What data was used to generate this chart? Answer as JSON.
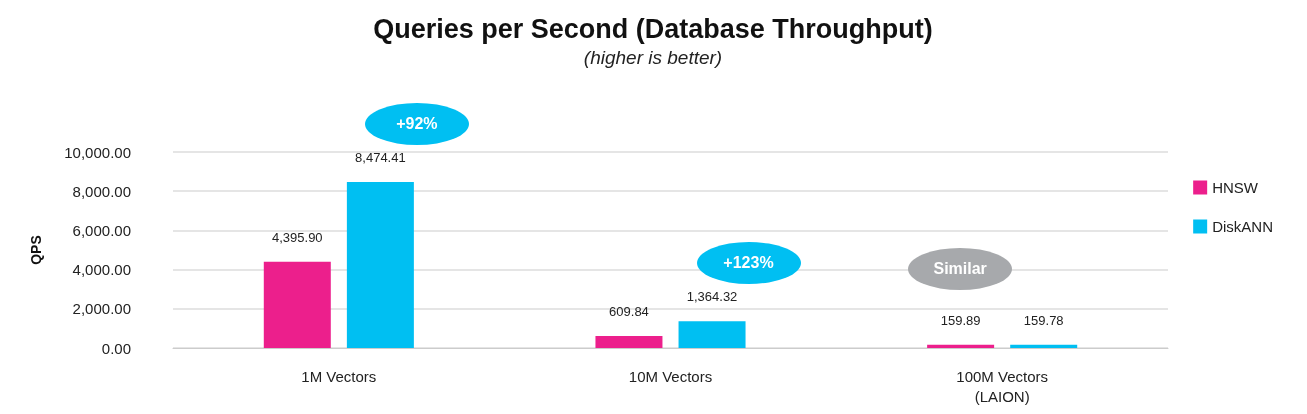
{
  "chart_data": {
    "type": "bar",
    "title": "Queries per Second (Database Throughput)",
    "subtitle": "(higher is better)",
    "ylabel": "QPS",
    "categories": [
      "1M Vectors",
      "10M Vectors",
      "100M Vectors\n(LAION)"
    ],
    "series": [
      {
        "name": "HNSW",
        "color": "#ec1f8c",
        "values": [
          4395.9,
          609.84,
          159.89
        ],
        "value_labels": [
          "4,395.90",
          "609.84",
          "159.89"
        ]
      },
      {
        "name": "DiskANN",
        "color": "#00bff2",
        "values": [
          8474.41,
          1364.32,
          159.78
        ],
        "value_labels": [
          "8,474.41",
          "1,364.32",
          "159.78"
        ]
      }
    ],
    "annotations": [
      "+92%",
      "+123%",
      "Similar"
    ],
    "ylim": [
      0,
      10000
    ],
    "yticks": [
      {
        "value": 0,
        "label": "0.00"
      },
      {
        "value": 2000,
        "label": "2,000.00"
      },
      {
        "value": 4000,
        "label": "4,000.00"
      },
      {
        "value": 6000,
        "label": "6,000.00"
      },
      {
        "value": 8000,
        "label": "8,000.00"
      },
      {
        "value": 10000,
        "label": "10,000.00"
      }
    ],
    "grid": "y",
    "legend": "right"
  }
}
